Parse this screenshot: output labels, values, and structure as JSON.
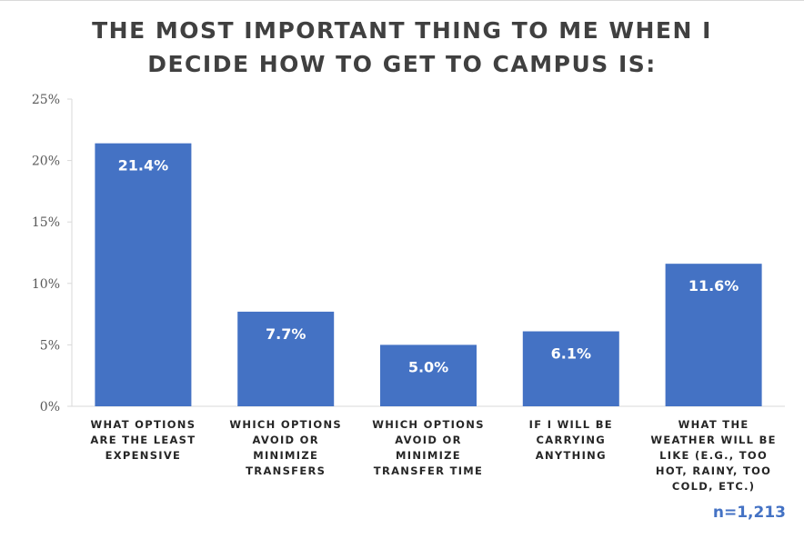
{
  "chart_data": {
    "type": "bar",
    "title": "THE MOST IMPORTANT THING TO ME WHEN I\nDECIDE HOW TO GET TO CAMPUS IS:",
    "categories": [
      [
        "WHAT OPTIONS",
        "ARE THE LEAST",
        "EXPENSIVE"
      ],
      [
        "WHICH OPTIONS",
        "AVOID OR",
        "MINIMIZE",
        "TRANSFERS"
      ],
      [
        "WHICH OPTIONS",
        "AVOID OR",
        "MINIMIZE",
        "TRANSFER TIME"
      ],
      [
        "IF I WILL BE",
        "CARRYING",
        "ANYTHING"
      ],
      [
        "WHAT THE",
        "WEATHER WILL BE",
        "LIKE (E.G., TOO",
        "HOT, RAINY, TOO",
        "COLD, ETC.)"
      ]
    ],
    "values": [
      21.4,
      7.7,
      5.0,
      6.1,
      11.6
    ],
    "data_labels": [
      "21.4%",
      "7.7%",
      "5.0%",
      "6.1%",
      "11.6%"
    ],
    "ylim": [
      0,
      25
    ],
    "yticks": [
      0,
      5,
      10,
      15,
      20,
      25
    ],
    "ytick_labels": [
      "0%",
      "5%",
      "10%",
      "15%",
      "20%",
      "25%"
    ],
    "xlabel": "",
    "ylabel": "",
    "grid": false,
    "colors": {
      "bar": "#4472c4",
      "axis": "#d9d9d9"
    },
    "note": "n=1,213"
  }
}
